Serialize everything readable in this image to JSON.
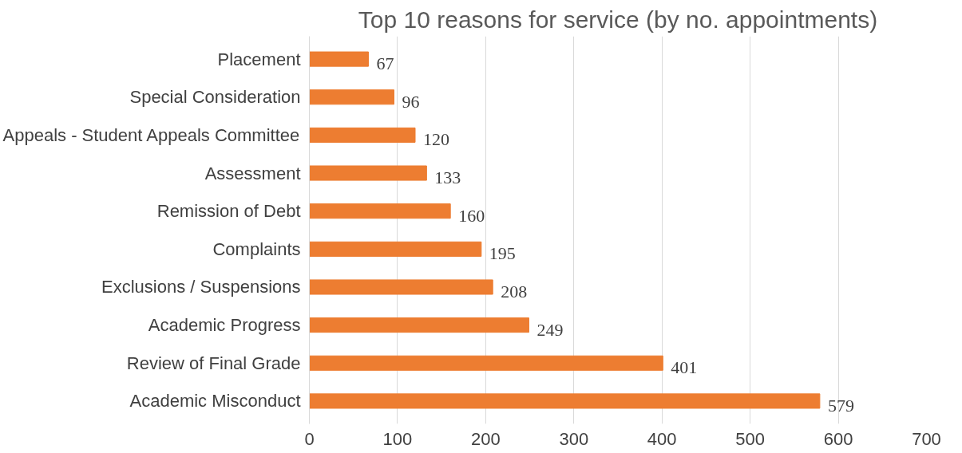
{
  "chart_data": {
    "type": "bar",
    "orientation": "horizontal",
    "title": "Top 10 reasons for service (by no. appointments)",
    "categories": [
      "Placement",
      "Special Consideration",
      "Appeals - Student Appeals Committee",
      "Assessment",
      "Remission of Debt",
      "Complaints",
      "Exclusions / Suspensions",
      "Academic Progress",
      "Review of Final Grade",
      "Academic Misconduct"
    ],
    "values": [
      67,
      96,
      120,
      133,
      160,
      195,
      208,
      249,
      401,
      579
    ],
    "color": "#ed7d31",
    "xlim": [
      0,
      700
    ],
    "xticks": [
      0,
      100,
      200,
      300,
      400,
      500,
      600,
      700
    ],
    "grid": "x",
    "data_labels": true
  }
}
